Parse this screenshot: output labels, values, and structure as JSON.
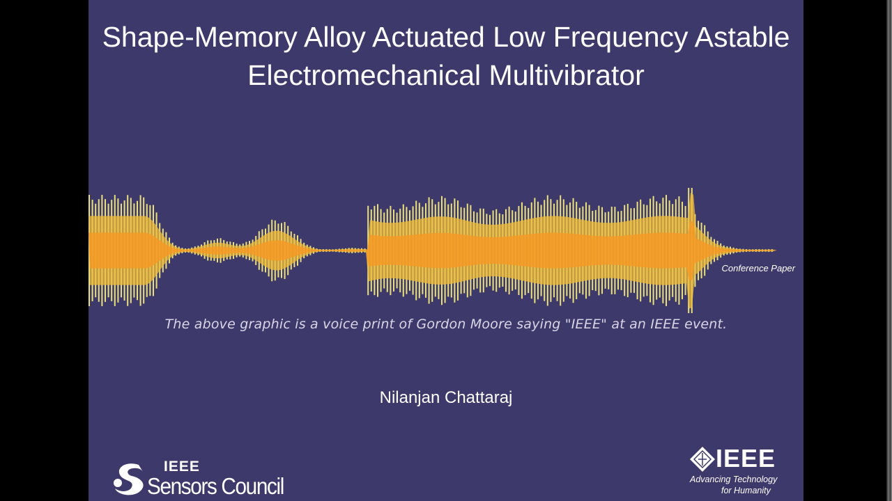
{
  "slide": {
    "title": "Shape-Memory Alloy Actuated Low Frequency Astable Electromechanical Multivibrator",
    "graphic_label": "Conference Paper",
    "caption": "The above graphic is a voice print of Gordon Moore saying \"IEEE\" at an IEEE event.",
    "author": "Nilanjan Chattaraj",
    "logos": {
      "sensors_council": {
        "line1": "IEEE",
        "line2": "Sensors Council"
      },
      "ieee": {
        "word": "IEEE",
        "tagline1": "Advancing Technology",
        "tagline2": "for Humanity"
      }
    }
  },
  "colors": {
    "background": "#3e396b",
    "wave_outer": "#ece07a",
    "wave_mid": "#f1bd3a",
    "wave_inner": "#f59a26",
    "text": "#ffffff"
  }
}
